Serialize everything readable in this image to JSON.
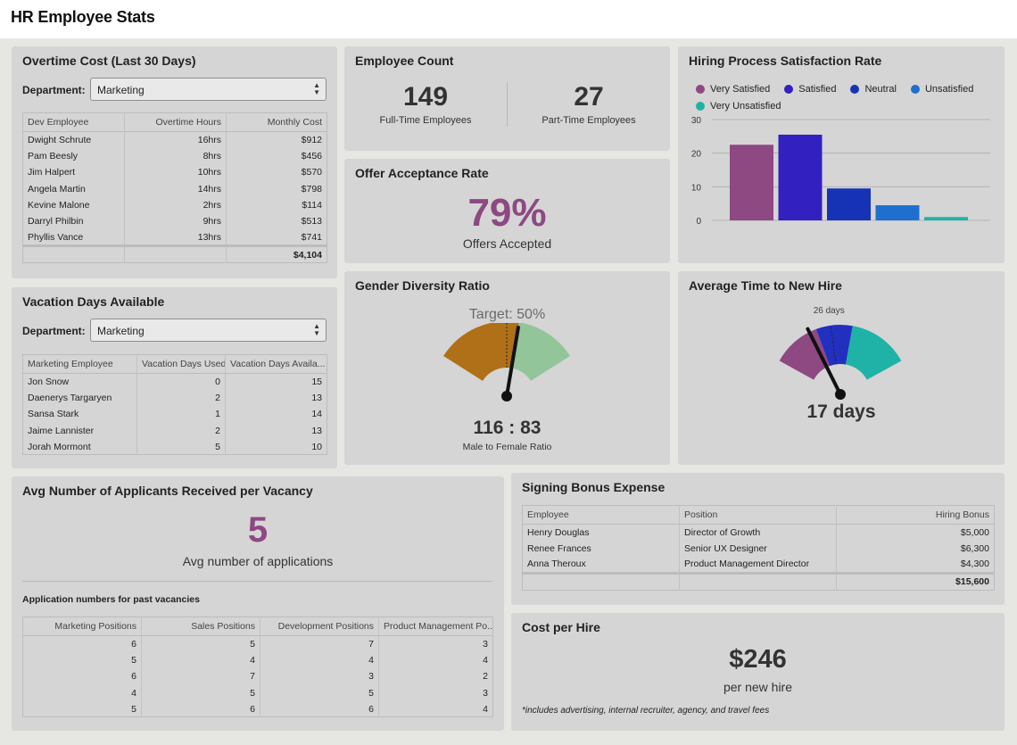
{
  "page": {
    "title": "HR Employee Stats"
  },
  "overtime": {
    "title": "Overtime Cost (Last 30 Days)",
    "dept_label": "Department:",
    "dept_value": "Marketing",
    "headers": [
      "Dev Employee",
      "Overtime Hours",
      "Monthly Cost"
    ],
    "rows": [
      [
        "Dwight Schrute",
        "16hrs",
        "$912"
      ],
      [
        "Pam Beesly",
        "8hrs",
        "$456"
      ],
      [
        "Jim Halpert",
        "10hrs",
        "$570"
      ],
      [
        "Angela Martin",
        "14hrs",
        "$798"
      ],
      [
        "Kevine Malone",
        "2hrs",
        "$114"
      ],
      [
        "Darryl Philbin",
        "9hrs",
        "$513"
      ],
      [
        "Phyllis Vance",
        "13hrs",
        "$741"
      ]
    ],
    "total": "$4,104"
  },
  "vacation": {
    "title": "Vacation Days Available",
    "dept_label": "Department:",
    "dept_value": "Marketing",
    "headers": [
      "Marketing Employee",
      "Vacation Days Used",
      "Vacation Days Availa..."
    ],
    "rows": [
      [
        "Jon Snow",
        "0",
        "15"
      ],
      [
        "Daenerys Targaryen",
        "2",
        "13"
      ],
      [
        "Sansa Stark",
        "1",
        "14"
      ],
      [
        "Jaime Lannister",
        "2",
        "13"
      ],
      [
        "Jorah Mormont",
        "5",
        "10"
      ]
    ]
  },
  "employee_count": {
    "title": "Employee Count",
    "full_time_value": "149",
    "full_time_label": "Full-Time Employees",
    "part_time_value": "27",
    "part_time_label": "Part-Time Employees"
  },
  "offer_acceptance": {
    "title": "Offer Acceptance Rate",
    "value": "79%",
    "label": "Offers Accepted"
  },
  "gender_diversity": {
    "title": "Gender Diversity Ratio",
    "target_label": "Target: 50%",
    "ratio": "116 : 83",
    "ratio_label": "Male to Female Ratio",
    "male": 116,
    "female": 83,
    "target_fraction": 0.5,
    "colors": {
      "male": "#b07018",
      "female": "#93c59a"
    }
  },
  "time_to_hire": {
    "title": "Average Time to New Hire",
    "target_label": "26 days",
    "value": "17 days",
    "value_number": 17,
    "target_number": 26,
    "range_max": 60,
    "bands": [
      {
        "to": 20,
        "color": "#8e4882"
      },
      {
        "to": 35,
        "color": "#2230c0"
      },
      {
        "to": 60,
        "color": "#1eb3a6"
      }
    ]
  },
  "satisfaction": {
    "title": "Hiring Process Satisfaction Rate",
    "legend": [
      {
        "label": "Very Satisfied",
        "color": "#8e4882"
      },
      {
        "label": "Satisfied",
        "color": "#3320c0"
      },
      {
        "label": "Neutral",
        "color": "#1733b5"
      },
      {
        "label": "Unsatisfied",
        "color": "#1f6fcf"
      },
      {
        "label": "Very Unsatisfied",
        "color": "#1eb3a6"
      }
    ]
  },
  "chart_data": {
    "type": "bar",
    "title": "Hiring Process Satisfaction Rate",
    "categories": [
      "Very Satisfied",
      "Satisfied",
      "Neutral",
      "Unsatisfied",
      "Very Unsatisfied"
    ],
    "values": [
      22.5,
      25.5,
      9.5,
      4.5,
      1
    ],
    "colors": [
      "#8e4882",
      "#3320c0",
      "#1733b5",
      "#1f6fcf",
      "#1eb3a6"
    ],
    "yticks": [
      "30",
      "20",
      "10",
      "0"
    ],
    "ylim": [
      0,
      30
    ],
    "grid": true,
    "legend": "top"
  },
  "applicants": {
    "title": "Avg Number of Applicants Received per Vacancy",
    "value": "5",
    "label": "Avg number of applications",
    "subtitle": "Application numbers for past vacancies",
    "headers": [
      "Marketing Positions",
      "Sales Positions",
      "Development Positions",
      "Product Management Po..."
    ],
    "rows": [
      [
        "6",
        "5",
        "7",
        "3"
      ],
      [
        "5",
        "4",
        "4",
        "4"
      ],
      [
        "6",
        "7",
        "3",
        "2"
      ],
      [
        "4",
        "5",
        "5",
        "3"
      ],
      [
        "5",
        "6",
        "6",
        "4"
      ]
    ]
  },
  "signing_bonus": {
    "title": "Signing Bonus Expense",
    "headers": [
      "Employee",
      "Position",
      "Hiring Bonus"
    ],
    "rows": [
      [
        "Henry Douglas",
        "Director of Growth",
        "$5,000"
      ],
      [
        "Renee Frances",
        "Senior UX Designer",
        "$6,300"
      ],
      [
        "Anna Theroux",
        "Product Management Director",
        "$4,300"
      ]
    ],
    "total": "$15,600"
  },
  "cost_per_hire": {
    "title": "Cost per Hire",
    "value": "$246",
    "label": "per new hire",
    "note": "*includes advertising, internal recruiter, agency, and travel fees"
  }
}
